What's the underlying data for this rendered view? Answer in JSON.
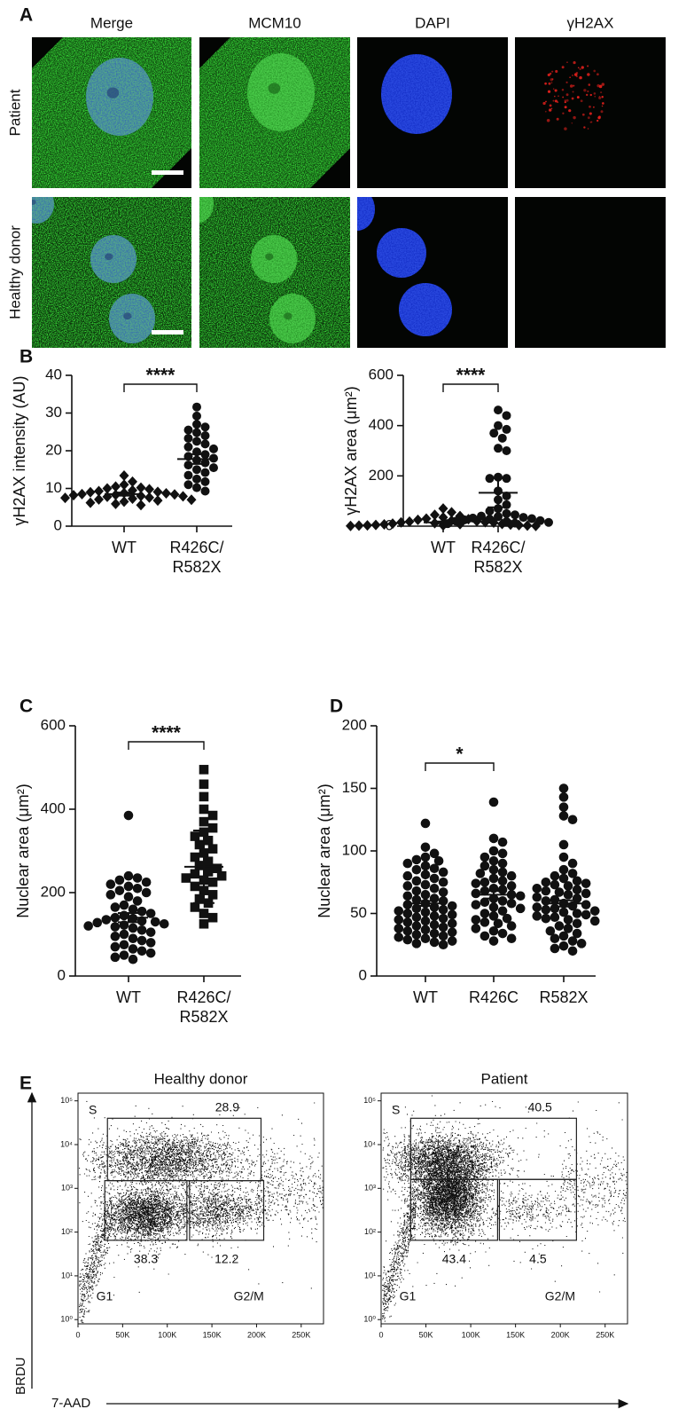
{
  "panel_a": {
    "label": "A",
    "columns": [
      "Merge",
      "MCM10",
      "DAPI",
      "γH2AX"
    ],
    "rows": [
      "Patient",
      "Healthy donor"
    ]
  },
  "chart_data": [
    {
      "type": "dotplot",
      "panel_label": "B",
      "ylabel": "γH2AX intensity (AU)",
      "categories": [
        "WT",
        "R426C/\nR582X"
      ],
      "markers": [
        "diamond",
        "circle"
      ],
      "values": [
        [
          13.4,
          11.8,
          11.0,
          10.5,
          10.2,
          10.0,
          9.8,
          9.5,
          9.3,
          9.1,
          9.0,
          8.8,
          8.7,
          8.5,
          8.4,
          8.3,
          8.2,
          8.0,
          7.9,
          7.8,
          7.6,
          7.5,
          7.3,
          7.1,
          7.0,
          6.8,
          6.5,
          6.2,
          5.9,
          5.6
        ],
        [
          31.6,
          29.2,
          27.0,
          26.3,
          25.5,
          24.8,
          24.0,
          23.3,
          22.5,
          21.8,
          21.0,
          20.5,
          19.7,
          19.0,
          18.5,
          18.0,
          17.5,
          16.8,
          16.2,
          15.5,
          15.0,
          14.2,
          13.5,
          12.5,
          11.8,
          11.0,
          10.2,
          9.3
        ]
      ],
      "means": [
        8.5,
        17.8
      ],
      "errors": [
        0.4,
        1.3
      ],
      "annotation": "****",
      "ylim": [
        0,
        40
      ],
      "yticks": [
        0,
        10,
        20,
        30,
        40
      ]
    },
    {
      "type": "dotplot",
      "ylabel": "γH2AX area (μm²)",
      "categories": [
        "WT",
        "R426C/\nR582X"
      ],
      "markers": [
        "diamond",
        "circle"
      ],
      "values": [
        [
          70,
          55,
          45,
          40,
          35,
          30,
          28,
          25,
          22,
          20,
          18,
          16,
          15,
          14,
          12,
          10,
          9,
          8,
          7,
          6,
          5,
          4,
          3,
          3,
          2,
          2,
          1,
          1
        ],
        [
          462,
          440,
          400,
          385,
          370,
          350,
          310,
          300,
          195,
          190,
          190,
          140,
          120,
          105,
          85,
          70,
          60,
          50,
          45,
          40,
          38,
          35,
          32,
          30,
          28,
          25,
          22,
          20,
          18,
          15,
          12,
          10
        ]
      ],
      "means": [
        15,
        133
      ],
      "errors": [
        3.5,
        58
      ],
      "annotation": "****",
      "ylim": [
        0,
        600
      ],
      "yticks": [
        0,
        200,
        400,
        600
      ]
    },
    {
      "type": "dotplot",
      "panel_label": "C",
      "ylabel": "Nuclear area (μm²)",
      "categories": [
        "WT",
        "R426C/\nR582X"
      ],
      "markers": [
        "circle",
        "square"
      ],
      "values": [
        [
          385,
          240,
          235,
          230,
          225,
          220,
          215,
          210,
          205,
          200,
          195,
          190,
          180,
          170,
          165,
          160,
          155,
          150,
          145,
          140,
          138,
          135,
          132,
          130,
          128,
          125,
          122,
          120,
          118,
          115,
          110,
          105,
          100,
          95,
          90,
          85,
          80,
          75,
          70,
          65,
          60,
          55,
          50,
          45,
          40
        ],
        [
          495,
          460,
          430,
          400,
          385,
          370,
          355,
          345,
          335,
          325,
          315,
          305,
          295,
          285,
          275,
          265,
          258,
          250,
          245,
          240,
          235,
          230,
          225,
          215,
          205,
          195,
          185,
          175,
          165,
          150,
          140,
          125
        ]
      ],
      "means": [
        140,
        262
      ],
      "errors": [
        11,
        87
      ],
      "annotation": "****",
      "ylim": [
        0,
        600
      ],
      "yticks": [
        0,
        200,
        400,
        600
      ]
    },
    {
      "type": "dotplot",
      "panel_label": "D",
      "ylabel": "Nuclear area (μm²)",
      "categories": [
        "WT",
        "R426C",
        "R582X"
      ],
      "markers": [
        "circle",
        "circle",
        "circle"
      ],
      "values": [
        [
          122,
          103,
          98,
          95,
          93,
          92,
          90,
          88,
          86,
          85,
          83,
          81,
          80,
          78,
          76,
          75,
          73,
          72,
          70,
          68,
          67,
          65,
          64,
          62,
          61,
          60,
          58,
          57,
          56,
          55,
          54,
          53,
          52,
          51,
          50,
          49,
          48,
          47,
          46,
          45,
          44,
          43,
          42,
          41,
          40,
          39,
          38,
          37,
          36,
          35,
          34,
          33,
          32,
          31,
          30,
          29,
          28,
          27,
          26,
          25
        ],
        [
          139,
          110,
          107,
          100,
          98,
          95,
          92,
          90,
          88,
          85,
          83,
          82,
          80,
          78,
          76,
          75,
          74,
          72,
          70,
          69,
          68,
          66,
          65,
          64,
          62,
          60,
          59,
          58,
          57,
          55,
          54,
          52,
          50,
          48,
          46,
          45,
          43,
          42,
          40,
          38,
          36,
          34,
          32,
          30,
          28
        ],
        [
          150,
          143,
          135,
          128,
          125,
          105,
          95,
          90,
          85,
          82,
          80,
          78,
          76,
          75,
          74,
          73,
          72,
          70,
          69,
          68,
          67,
          66,
          65,
          63,
          62,
          61,
          60,
          58,
          57,
          56,
          55,
          54,
          53,
          52,
          51,
          50,
          49,
          48,
          47,
          46,
          45,
          44,
          42,
          40,
          38,
          36,
          34,
          32,
          30,
          28,
          26,
          24,
          22,
          20
        ]
      ],
      "means": [
        58,
        65,
        58
      ],
      "errors": [
        2,
        3,
        2.5
      ],
      "annotation": "*",
      "ylim": [
        0,
        200
      ],
      "yticks": [
        0,
        50,
        100,
        150,
        200
      ]
    },
    {
      "type": "flow",
      "panel_label": "E",
      "title": "Healthy donor",
      "ylabel": "BRDU",
      "xlabel": "7-AAD",
      "log_y": true,
      "xlim": [
        0,
        275000
      ],
      "xticks": [
        0,
        {
          "value": 50000,
          "label": "50K"
        },
        {
          "value": 100000,
          "label": "100K"
        },
        {
          "value": 150000,
          "label": "150K"
        },
        {
          "value": 200000,
          "label": "200K"
        },
        {
          "value": 250000,
          "label": "250K"
        }
      ],
      "ylim": [
        0.8,
        150000
      ],
      "yticks": [
        {
          "value": 1,
          "label": "10⁰"
        },
        {
          "value": 10,
          "label": "10¹"
        },
        {
          "value": 100,
          "label": "10²"
        },
        {
          "value": 1000,
          "label": "10³"
        },
        {
          "value": 10000,
          "label": "10⁴"
        },
        {
          "value": 100000,
          "label": "10⁵"
        }
      ],
      "gates": [
        {
          "name": "S",
          "value": 28.9,
          "xrange": [
            33000,
            205000
          ],
          "yrange": [
            1500,
            40000
          ]
        },
        {
          "name": "G1",
          "value": 38.3,
          "xrange": [
            30000,
            122000
          ],
          "yrange": [
            65,
            1500
          ]
        },
        {
          "name": "G2/M",
          "value": 12.2,
          "xrange": [
            125000,
            208000
          ],
          "yrange": [
            65,
            1500
          ]
        }
      ]
    },
    {
      "type": "flow",
      "title": "Patient",
      "log_y": true,
      "xlim": [
        0,
        275000
      ],
      "xticks": [
        0,
        {
          "value": 50000,
          "label": "50K"
        },
        {
          "value": 100000,
          "label": "100K"
        },
        {
          "value": 150000,
          "label": "150K"
        },
        {
          "value": 200000,
          "label": "200K"
        },
        {
          "value": 250000,
          "label": "250K"
        }
      ],
      "ylim": [
        0.8,
        150000
      ],
      "yticks": [
        {
          "value": 1,
          "label": "10⁰"
        },
        {
          "value": 10,
          "label": "10¹"
        },
        {
          "value": 100,
          "label": "10²"
        },
        {
          "value": 1000,
          "label": "10³"
        },
        {
          "value": 10000,
          "label": "10⁴"
        },
        {
          "value": 100000,
          "label": "10⁵"
        }
      ],
      "gates": [
        {
          "name": "S",
          "value": 40.5,
          "xrange": [
            33000,
            218000
          ],
          "yrange": [
            1600,
            40000
          ]
        },
        {
          "name": "G1",
          "value": 43.4,
          "xrange": [
            33000,
            130000
          ],
          "yrange": [
            65,
            1600
          ]
        },
        {
          "name": "G2/M",
          "value": 4.5,
          "xrange": [
            132000,
            218000
          ],
          "yrange": [
            65,
            1600
          ]
        }
      ]
    }
  ]
}
